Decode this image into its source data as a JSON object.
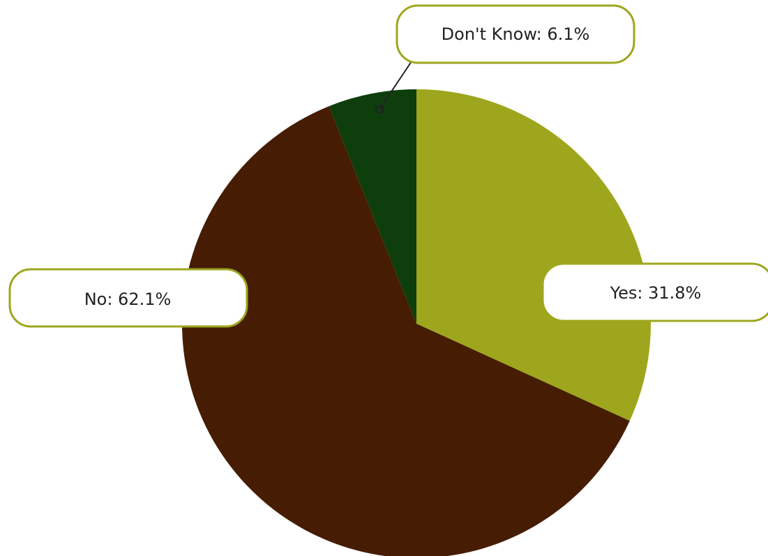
{
  "chart_data": {
    "type": "pie",
    "title": "",
    "start_angle_deg": 0,
    "direction": "clockwise",
    "slices": [
      {
        "label": "Yes",
        "value": 31.8,
        "display": "Yes: 31.8%",
        "color": "#9EA61D"
      },
      {
        "label": "No",
        "value": 62.1,
        "display": "No: 62.1%",
        "color": "#461D03"
      },
      {
        "label": "Don't Know",
        "value": 6.1,
        "display": "Don't Know: 6.1%",
        "color": "#0E3E0C"
      }
    ],
    "label_style": {
      "callout_border_color": "#9EA61D",
      "callout_fill": "#ffffff",
      "text_color": "#222222",
      "leader_color": "#222222"
    }
  }
}
